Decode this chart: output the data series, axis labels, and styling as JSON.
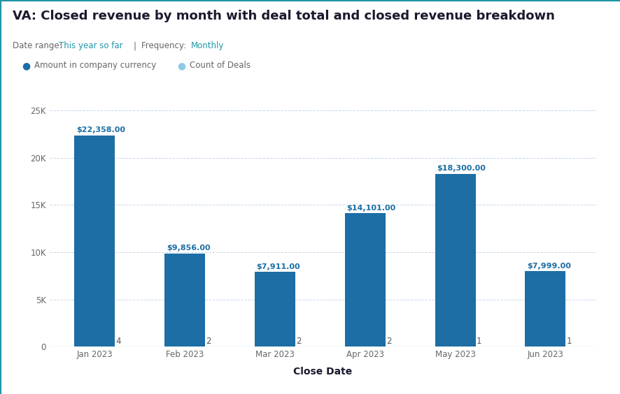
{
  "title": "VA: Closed revenue by month with deal total and closed revenue breakdown",
  "subtitle_date_label": "Date range:",
  "subtitle_date_value": "This year so far",
  "subtitle_sep": "|",
  "subtitle_freq_label": "Frequency:",
  "subtitle_freq_value": "Monthly",
  "legend_items": [
    {
      "label": "Amount in company currency",
      "color": "#1c6ea4"
    },
    {
      "label": "Count of Deals",
      "color": "#8ecae6"
    }
  ],
  "categories": [
    "Jan 2023",
    "Feb 2023",
    "Mar 2023",
    "Apr 2023",
    "May 2023",
    "Jun 2023"
  ],
  "bar_values": [
    22358,
    9856,
    7911,
    14101,
    18300,
    7999
  ],
  "bar_labels": [
    "$22,358.00",
    "$9,856.00",
    "$7,911.00",
    "$14,101.00",
    "$18,300.00",
    "$7,999.00"
  ],
  "count_values": [
    4,
    2,
    2,
    2,
    1,
    1
  ],
  "bar_color": "#1c6ea4",
  "count_color": "#8ecae6",
  "xlabel": "Close Date",
  "ylim": [
    0,
    25000
  ],
  "yticks": [
    0,
    5000,
    10000,
    15000,
    20000,
    25000
  ],
  "ytick_labels": [
    "0",
    "5K",
    "10K",
    "15K",
    "20K",
    "25K"
  ],
  "bg_color": "#ffffff",
  "plot_bg_color": "#f5f9fc",
  "grid_color": "#c8d8e8",
  "border_color": "#2196a8",
  "title_color": "#1a1a2e",
  "subtitle_gray": "#666666",
  "subtitle_teal": "#2196a8",
  "axis_tick_color": "#666666",
  "bar_label_color": "#1c6ea4",
  "count_label_color": "#555555",
  "title_fontsize": 13,
  "subtitle_fontsize": 8.5,
  "legend_fontsize": 8.5,
  "tick_fontsize": 8.5,
  "xlabel_fontsize": 10,
  "bar_label_fontsize": 8,
  "count_label_fontsize": 8.5
}
